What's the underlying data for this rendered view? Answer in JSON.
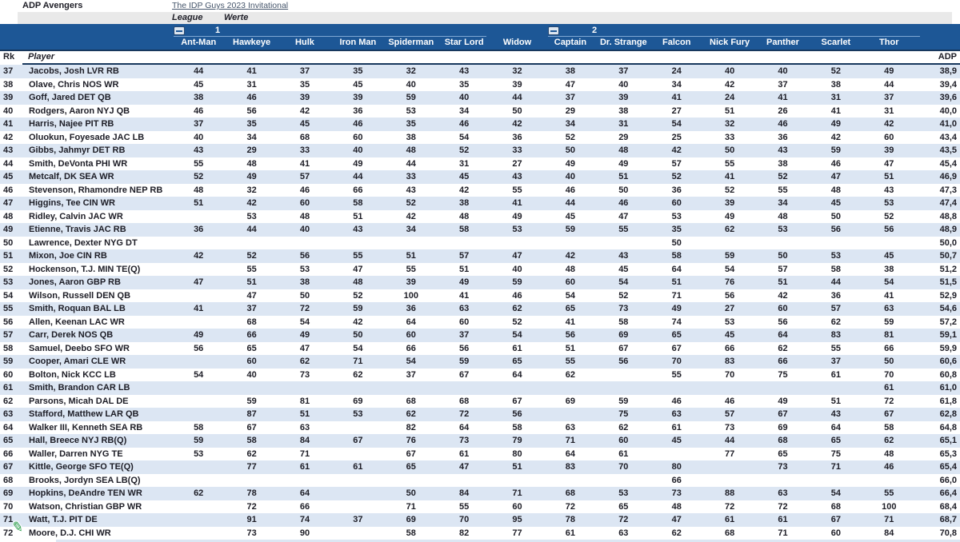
{
  "header": {
    "title": "ADP Avengers",
    "link": "The IDP Guys 2023 Invitational",
    "league_label": "League",
    "werte_label": "Werte",
    "group1_label": "1",
    "group2_label": "2",
    "teams": [
      "Ant-Man",
      "Hawkeye",
      "Hulk",
      "Iron Man",
      "Spiderman",
      "Star Lord",
      "Widow",
      "Captain",
      "Dr. Strange",
      "Falcon",
      "Nick Fury",
      "Panther",
      "Scarlet",
      "Thor"
    ],
    "rk_label": "Rk",
    "player_label": "Player",
    "adp_label": "ADP"
  },
  "colors": {
    "header_bar": "#1d5796",
    "navy_line": "#17375d",
    "row_tint": "#dce6f3",
    "gray_band": "#e9e9e9",
    "link": "#44546a",
    "pencil_green": "#249a44"
  },
  "icons": {
    "collapse_button": "minus-in-box",
    "cursor": "green-pencil"
  },
  "rows": [
    {
      "rk": "37",
      "player": "Jacobs, Josh LVR RB",
      "values": [
        "44",
        "41",
        "37",
        "35",
        "32",
        "43",
        "32",
        "38",
        "37",
        "24",
        "40",
        "40",
        "52",
        "49"
      ],
      "adp": "38,9"
    },
    {
      "rk": "38",
      "player": "Olave, Chris NOS WR",
      "values": [
        "45",
        "31",
        "35",
        "45",
        "40",
        "35",
        "39",
        "47",
        "40",
        "34",
        "42",
        "37",
        "38",
        "44"
      ],
      "adp": "39,4"
    },
    {
      "rk": "39",
      "player": "Goff, Jared DET QB",
      "values": [
        "38",
        "46",
        "39",
        "39",
        "59",
        "40",
        "44",
        "37",
        "39",
        "41",
        "24",
        "41",
        "31",
        "37"
      ],
      "adp": "39,6"
    },
    {
      "rk": "40",
      "player": "Rodgers, Aaron NYJ QB",
      "values": [
        "46",
        "56",
        "42",
        "36",
        "53",
        "34",
        "50",
        "29",
        "38",
        "27",
        "51",
        "26",
        "41",
        "31"
      ],
      "adp": "40,0"
    },
    {
      "rk": "41",
      "player": "Harris, Najee PIT RB",
      "values": [
        "37",
        "35",
        "45",
        "46",
        "35",
        "46",
        "42",
        "34",
        "31",
        "54",
        "32",
        "46",
        "49",
        "42"
      ],
      "adp": "41,0"
    },
    {
      "rk": "42",
      "player": "Oluokun, Foyesade JAC LB",
      "values": [
        "40",
        "34",
        "68",
        "60",
        "38",
        "54",
        "36",
        "52",
        "29",
        "25",
        "33",
        "36",
        "42",
        "60"
      ],
      "adp": "43,4"
    },
    {
      "rk": "43",
      "player": "Gibbs, Jahmyr DET RB",
      "values": [
        "43",
        "29",
        "33",
        "40",
        "48",
        "52",
        "33",
        "50",
        "48",
        "42",
        "50",
        "43",
        "59",
        "39"
      ],
      "adp": "43,5"
    },
    {
      "rk": "44",
      "player": "Smith, DeVonta PHI WR",
      "values": [
        "55",
        "48",
        "41",
        "49",
        "44",
        "31",
        "27",
        "49",
        "49",
        "57",
        "55",
        "38",
        "46",
        "47"
      ],
      "adp": "45,4"
    },
    {
      "rk": "45",
      "player": "Metcalf, DK SEA WR",
      "values": [
        "52",
        "49",
        "57",
        "44",
        "33",
        "45",
        "43",
        "40",
        "51",
        "52",
        "41",
        "52",
        "47",
        "51"
      ],
      "adp": "46,9"
    },
    {
      "rk": "46",
      "player": "Stevenson, Rhamondre NEP RB",
      "values": [
        "48",
        "32",
        "46",
        "66",
        "43",
        "42",
        "55",
        "46",
        "50",
        "36",
        "52",
        "55",
        "48",
        "43"
      ],
      "adp": "47,3"
    },
    {
      "rk": "47",
      "player": "Higgins, Tee CIN WR",
      "values": [
        "51",
        "42",
        "60",
        "58",
        "52",
        "38",
        "41",
        "44",
        "46",
        "60",
        "39",
        "34",
        "45",
        "53"
      ],
      "adp": "47,4"
    },
    {
      "rk": "48",
      "player": "Ridley, Calvin JAC WR",
      "values": [
        "",
        "53",
        "48",
        "51",
        "42",
        "48",
        "49",
        "45",
        "47",
        "53",
        "49",
        "48",
        "50",
        "52"
      ],
      "adp": "48,8"
    },
    {
      "rk": "49",
      "player": "Etienne, Travis JAC RB",
      "values": [
        "36",
        "44",
        "40",
        "43",
        "34",
        "58",
        "53",
        "59",
        "55",
        "35",
        "62",
        "53",
        "56",
        "56"
      ],
      "adp": "48,9"
    },
    {
      "rk": "50",
      "player": "Lawrence, Dexter NYG DT",
      "values": [
        "",
        "",
        "",
        "",
        "",
        "",
        "",
        "",
        "",
        "50",
        "",
        "",
        "",
        ""
      ],
      "adp": "50,0"
    },
    {
      "rk": "51",
      "player": "Mixon, Joe CIN RB",
      "values": [
        "42",
        "52",
        "56",
        "55",
        "51",
        "57",
        "47",
        "42",
        "43",
        "58",
        "59",
        "50",
        "53",
        "45"
      ],
      "adp": "50,7"
    },
    {
      "rk": "52",
      "player": "Hockenson, T.J. MIN TE(Q)",
      "values": [
        "",
        "55",
        "53",
        "47",
        "55",
        "51",
        "40",
        "48",
        "45",
        "64",
        "54",
        "57",
        "58",
        "38"
      ],
      "adp": "51,2"
    },
    {
      "rk": "53",
      "player": "Jones, Aaron GBP RB",
      "values": [
        "47",
        "51",
        "38",
        "48",
        "39",
        "49",
        "59",
        "60",
        "54",
        "51",
        "76",
        "51",
        "44",
        "54"
      ],
      "adp": "51,5"
    },
    {
      "rk": "54",
      "player": "Wilson, Russell DEN QB",
      "values": [
        "",
        "47",
        "50",
        "52",
        "100",
        "41",
        "46",
        "54",
        "52",
        "71",
        "56",
        "42",
        "36",
        "41"
      ],
      "adp": "52,9"
    },
    {
      "rk": "55",
      "player": "Smith, Roquan BAL LB",
      "values": [
        "41",
        "37",
        "72",
        "59",
        "36",
        "63",
        "62",
        "65",
        "73",
        "49",
        "27",
        "60",
        "57",
        "63"
      ],
      "adp": "54,6"
    },
    {
      "rk": "56",
      "player": "Allen, Keenan LAC WR",
      "values": [
        "",
        "68",
        "54",
        "42",
        "64",
        "60",
        "52",
        "41",
        "58",
        "74",
        "53",
        "56",
        "62",
        "59"
      ],
      "adp": "57,2"
    },
    {
      "rk": "57",
      "player": "Carr, Derek NOS QB",
      "values": [
        "49",
        "66",
        "49",
        "50",
        "60",
        "37",
        "54",
        "56",
        "69",
        "65",
        "45",
        "64",
        "83",
        "81"
      ],
      "adp": "59,1"
    },
    {
      "rk": "58",
      "player": "Samuel, Deebo SFO WR",
      "values": [
        "56",
        "65",
        "47",
        "54",
        "66",
        "56",
        "61",
        "51",
        "67",
        "67",
        "66",
        "62",
        "55",
        "66"
      ],
      "adp": "59,9"
    },
    {
      "rk": "59",
      "player": "Cooper, Amari CLE WR",
      "values": [
        "",
        "60",
        "62",
        "71",
        "54",
        "59",
        "65",
        "55",
        "56",
        "70",
        "83",
        "66",
        "37",
        "50"
      ],
      "adp": "60,6"
    },
    {
      "rk": "60",
      "player": "Bolton, Nick KCC LB",
      "values": [
        "54",
        "40",
        "73",
        "62",
        "37",
        "67",
        "64",
        "62",
        "",
        "55",
        "70",
        "75",
        "61",
        "70"
      ],
      "adp": "60,8"
    },
    {
      "rk": "61",
      "player": "Smith, Brandon CAR LB",
      "values": [
        "",
        "",
        "",
        "",
        "",
        "",
        "",
        "",
        "",
        "",
        "",
        "",
        "",
        "61"
      ],
      "adp": "61,0"
    },
    {
      "rk": "62",
      "player": "Parsons, Micah DAL DE",
      "values": [
        "",
        "59",
        "81",
        "69",
        "68",
        "68",
        "67",
        "69",
        "59",
        "46",
        "46",
        "49",
        "51",
        "72"
      ],
      "adp": "61,8"
    },
    {
      "rk": "63",
      "player": "Stafford, Matthew LAR QB",
      "values": [
        "",
        "87",
        "51",
        "53",
        "62",
        "72",
        "56",
        "",
        "75",
        "63",
        "57",
        "67",
        "43",
        "67"
      ],
      "adp": "62,8"
    },
    {
      "rk": "64",
      "player": "Walker III, Kenneth SEA RB",
      "values": [
        "58",
        "67",
        "63",
        "",
        "82",
        "64",
        "58",
        "63",
        "62",
        "61",
        "73",
        "69",
        "64",
        "58"
      ],
      "adp": "64,8"
    },
    {
      "rk": "65",
      "player": "Hall, Breece NYJ RB(Q)",
      "values": [
        "59",
        "58",
        "84",
        "67",
        "76",
        "73",
        "79",
        "71",
        "60",
        "45",
        "44",
        "68",
        "65",
        "62"
      ],
      "adp": "65,1"
    },
    {
      "rk": "66",
      "player": "Waller, Darren NYG TE",
      "values": [
        "53",
        "62",
        "71",
        "",
        "67",
        "61",
        "80",
        "64",
        "61",
        "",
        "77",
        "65",
        "75",
        "48"
      ],
      "adp": "65,3"
    },
    {
      "rk": "67",
      "player": "Kittle, George SFO TE(Q)",
      "values": [
        "",
        "77",
        "61",
        "61",
        "65",
        "47",
        "51",
        "83",
        "70",
        "80",
        "",
        "73",
        "71",
        "46"
      ],
      "adp": "65,4"
    },
    {
      "rk": "68",
      "player": "Brooks, Jordyn SEA LB(Q)",
      "values": [
        "",
        "",
        "",
        "",
        "",
        "",
        "",
        "",
        "",
        "66",
        "",
        "",
        "",
        ""
      ],
      "adp": "66,0"
    },
    {
      "rk": "69",
      "player": "Hopkins, DeAndre TEN WR",
      "values": [
        "62",
        "78",
        "64",
        "",
        "50",
        "84",
        "71",
        "68",
        "53",
        "73",
        "88",
        "63",
        "54",
        "55"
      ],
      "adp": "66,4"
    },
    {
      "rk": "70",
      "player": "Watson, Christian GBP WR",
      "values": [
        "",
        "72",
        "66",
        "",
        "71",
        "55",
        "60",
        "72",
        "65",
        "48",
        "72",
        "72",
        "68",
        "100"
      ],
      "adp": "68,4"
    },
    {
      "rk": "71",
      "player": "Watt, T.J. PIT DE",
      "values": [
        "",
        "91",
        "74",
        "37",
        "69",
        "70",
        "95",
        "78",
        "72",
        "47",
        "61",
        "61",
        "67",
        "71"
      ],
      "adp": "68,7"
    },
    {
      "rk": "72",
      "player": "Moore, D.J. CHI WR",
      "values": [
        "",
        "73",
        "90",
        "",
        "58",
        "82",
        "77",
        "61",
        "63",
        "62",
        "68",
        "71",
        "60",
        "84"
      ],
      "adp": "70,8"
    }
  ]
}
